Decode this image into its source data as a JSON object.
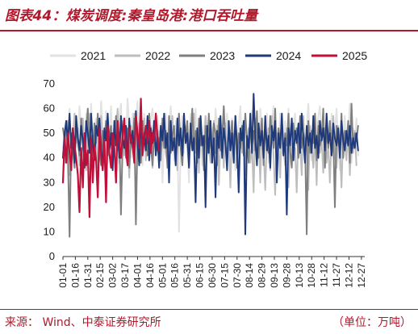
{
  "header": {
    "title": "图表44：煤炭调度:秦皇岛港:港口吞吐量"
  },
  "footer": {
    "source": "来源：  Wind、中泰证券研究所",
    "unit": "（单位：万吨）"
  },
  "chart_data": {
    "type": "line",
    "title": "煤炭调度:秦皇岛港:港口吞吐量",
    "xlabel": "",
    "ylabel": "",
    "ylim": [
      0,
      70
    ],
    "yticks": [
      0,
      10,
      20,
      30,
      40,
      50,
      60,
      70
    ],
    "xtick_labels": [
      "01-01",
      "01-16",
      "01-31",
      "02-15",
      "03-02",
      "03-17",
      "04-01",
      "04-16",
      "05-01",
      "05-16",
      "05-31",
      "06-15",
      "06-30",
      "07-15",
      "07-30",
      "08-14",
      "08-29",
      "09-13",
      "09-28",
      "10-13",
      "10-28",
      "11-12",
      "11-27",
      "12-12",
      "12-27"
    ],
    "x_start_day": 1,
    "x_days_per_point": 2,
    "grid": false,
    "legend_position": "top",
    "series": [
      {
        "name": "2021",
        "color": "#e2e2e2",
        "values": [
          44,
          51,
          55,
          47,
          60,
          38,
          52,
          57,
          49,
          44,
          61,
          53,
          46,
          40,
          58,
          50,
          43,
          62,
          47,
          53,
          56,
          41,
          49,
          63,
          52,
          45,
          59,
          38,
          50,
          61,
          44,
          55,
          48,
          35,
          57,
          62,
          42,
          51,
          46,
          64,
          53,
          40,
          58,
          47,
          55,
          63,
          44,
          50,
          37,
          58,
          45,
          52,
          41,
          56,
          60,
          49,
          43,
          57,
          46,
          54,
          30,
          48,
          58,
          44,
          52,
          61,
          47,
          39,
          55,
          50,
          10,
          45,
          57,
          42,
          53,
          47,
          30,
          58,
          44,
          50,
          60,
          41,
          55,
          48,
          37,
          52,
          57,
          46,
          41,
          54,
          49,
          45,
          60,
          52,
          43,
          56,
          47,
          40,
          51,
          58,
          44,
          49,
          56,
          42,
          35,
          47,
          53,
          61,
          44,
          50,
          57,
          41,
          52,
          46,
          59,
          43,
          48,
          55,
          40,
          60,
          52,
          45,
          50,
          58,
          38,
          47,
          55,
          61,
          44,
          51,
          46,
          58,
          42,
          49,
          55,
          37,
          60,
          47,
          43,
          53,
          58,
          45,
          50,
          41,
          56,
          48,
          44,
          53,
          62,
          46,
          39,
          55,
          50,
          43,
          57,
          61,
          47,
          52,
          40,
          55,
          49,
          45,
          58,
          43,
          51,
          60,
          46,
          35,
          53,
          48,
          57,
          44,
          50,
          62,
          38,
          52,
          47,
          56,
          41
        ]
      },
      {
        "name": "2022",
        "color": "#bdbdbd",
        "values": [
          42,
          38,
          48,
          55,
          33,
          50,
          44,
          58,
          46,
          52,
          37,
          49,
          56,
          43,
          35,
          51,
          58,
          45,
          40,
          53,
          47,
          36,
          50,
          57,
          42,
          48,
          34,
          55,
          46,
          51,
          39,
          44,
          52,
          60,
          38,
          47,
          55,
          41,
          50,
          46,
          32,
          53,
          45,
          58,
          49,
          40,
          54,
          47,
          43,
          56,
          39,
          50,
          45,
          53,
          36,
          48,
          57,
          44,
          51,
          40,
          46,
          55,
          42,
          38,
          52,
          49,
          57,
          43,
          48,
          35,
          53,
          46,
          41,
          55,
          50,
          44,
          37,
          52,
          47,
          58,
          42,
          49,
          34,
          54,
          46,
          40,
          57,
          51,
          44,
          38,
          48,
          55,
          42,
          53,
          29,
          47,
          50,
          36,
          54,
          43,
          48,
          28,
          52,
          39,
          57,
          45,
          31,
          50,
          42,
          55,
          33,
          47,
          52,
          38,
          45,
          26,
          56,
          41,
          49,
          30,
          53,
          44,
          27,
          48,
          52,
          35,
          57,
          41,
          25,
          50,
          46,
          32,
          54,
          43,
          37,
          52,
          28,
          47,
          55,
          39,
          44,
          26,
          51,
          46,
          33,
          57,
          40,
          48,
          27,
          53,
          45,
          36,
          50,
          29,
          55,
          42,
          47,
          34,
          52,
          38,
          45,
          30,
          49,
          57,
          41,
          36,
          53,
          44,
          28,
          50,
          46,
          39,
          55,
          33,
          48,
          42,
          51,
          37
        ]
      },
      {
        "name": "2023",
        "color": "#7f7f7f",
        "values": [
          52,
          47,
          55,
          40,
          8,
          50,
          44,
          36,
          53,
          47,
          41,
          56,
          45,
          38,
          51,
          60,
          43,
          49,
          35,
          54,
          46,
          58,
          42,
          37,
          51,
          47,
          55,
          41,
          49,
          53,
          38,
          45,
          57,
          43,
          50,
          17,
          46,
          55,
          40,
          52,
          36,
          48,
          44,
          56,
          13,
          50,
          42,
          38,
          55,
          47,
          53,
          41,
          58,
          45,
          37,
          50,
          54,
          43,
          48,
          39,
          56,
          44,
          51,
          36,
          57,
          42,
          49,
          53,
          40,
          46,
          58,
          44,
          37,
          52,
          48,
          55,
          41,
          47,
          60,
          43,
          51,
          38,
          56,
          45,
          49,
          35,
          53,
          42,
          58,
          46,
          40,
          54,
          50,
          37,
          56,
          43,
          48,
          61,
          45,
          39,
          52,
          47,
          55,
          42,
          57,
          36,
          50,
          44,
          53,
          41,
          58,
          47,
          38,
          55,
          45,
          51,
          43,
          59,
          40,
          48,
          56,
          37,
          53,
          46,
          42,
          57,
          49,
          44,
          60,
          38,
          52,
          47,
          55,
          41,
          50,
          45,
          58,
          43,
          36,
          54,
          48,
          52,
          40,
          57,
          44,
          50,
          47,
          9,
          55,
          42,
          51,
          46,
          58,
          39,
          53,
          45,
          48,
          60,
          36,
          52,
          44,
          55,
          41,
          49,
          20,
          53,
          47,
          43,
          58,
          40,
          51,
          46,
          55,
          38,
          62,
          44,
          50,
          47,
          53
        ]
      },
      {
        "name": "2024",
        "color": "#1f3a7a",
        "values": [
          40,
          50,
          55,
          46,
          58,
          44,
          52,
          38,
          57,
          48,
          43,
          53,
          47,
          36,
          55,
          50,
          42,
          58,
          46,
          39,
          53,
          49,
          56,
          44,
          36,
          52,
          47,
          58,
          43,
          50,
          35,
          55,
          45,
          52,
          40,
          57,
          48,
          44,
          53,
          38,
          56,
          46,
          51,
          42,
          59,
          47,
          37,
          54,
          45,
          50,
          43,
          57,
          39,
          52,
          46,
          55,
          41,
          49,
          36,
          53,
          47,
          58,
          44,
          50,
          30,
          55,
          43,
          48,
          37,
          56,
          45,
          52,
          41,
          58,
          46,
          50,
          36,
          54,
          43,
          48,
          22,
          52,
          40,
          57,
          45,
          49,
          20,
          53,
          42,
          55,
          38,
          48,
          24,
          51,
          44,
          57,
          40,
          52,
          46,
          35,
          55,
          43,
          50,
          38,
          57,
          45,
          26,
          52,
          47,
          55,
          9,
          49,
          44,
          58,
          42,
          66,
          48,
          37,
          54,
          45,
          51,
          40,
          57,
          43,
          49,
          36,
          53,
          47,
          55,
          30,
          50,
          44,
          58,
          41,
          48,
          17,
          52,
          45,
          56,
          39,
          51,
          46,
          54,
          42,
          58,
          47,
          38,
          53,
          45,
          50,
          42,
          57,
          44,
          49,
          40,
          55,
          47,
          52,
          43,
          58,
          46,
          50,
          41,
          54,
          48,
          45,
          52,
          40,
          55,
          47,
          43,
          51,
          45,
          53,
          42,
          48,
          44,
          50,
          43
        ]
      },
      {
        "name": "2025",
        "color": "#c0103a",
        "values": [
          30,
          48,
          38,
          50,
          42,
          35,
          52,
          45,
          40,
          33,
          18,
          44,
          28,
          50,
          37,
          43,
          16,
          48,
          30,
          45,
          39,
          24,
          52,
          41,
          35,
          47,
          22,
          53,
          42,
          36,
          50,
          44,
          30,
          55,
          46,
          40,
          49,
          56,
          43,
          37,
          52,
          48,
          45,
          38,
          57,
          50,
          44,
          64,
          41,
          48,
          53,
          46,
          55,
          42,
          50,
          47,
          58,
          49,
          43
        ]
      }
    ]
  }
}
